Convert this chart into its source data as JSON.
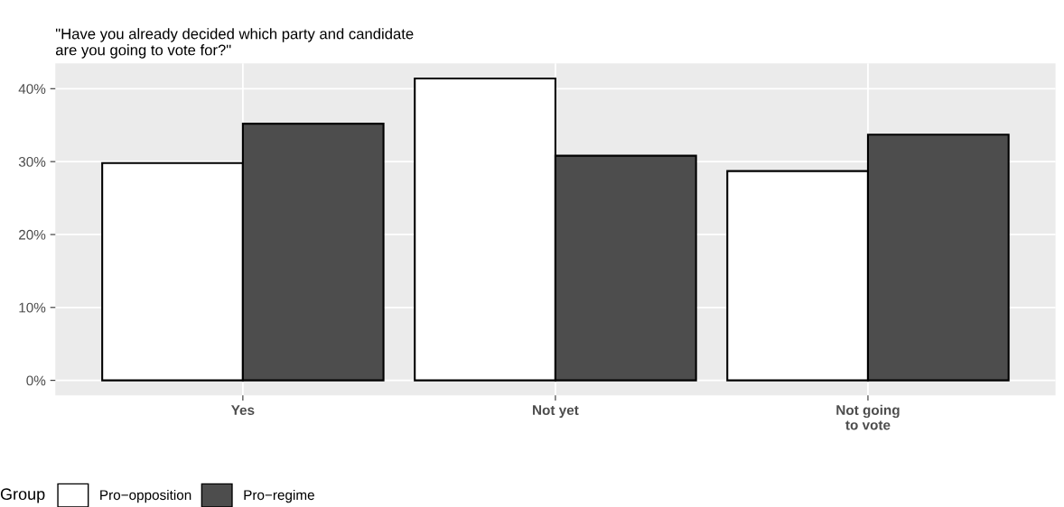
{
  "chart_data": {
    "type": "bar",
    "title": "\"Have you already decided which party and candidate\nare you going to vote for?\"",
    "categories": [
      "Yes",
      "Not yet",
      "Not going\nto vote"
    ],
    "series": [
      {
        "name": "Pro−opposition",
        "color": "#ffffff",
        "values": [
          29.8,
          41.4,
          28.7
        ]
      },
      {
        "name": "Pro−regime",
        "color": "#4d4d4d",
        "values": [
          35.2,
          30.8,
          33.7
        ]
      }
    ],
    "legend_title": "Group",
    "legend": "bottom",
    "grid": true,
    "ylim": [
      -2.07,
      43.47
    ],
    "yticks": [
      {
        "value": 0,
        "label": "0%"
      },
      {
        "value": 10,
        "label": "10%"
      },
      {
        "value": 20,
        "label": "20%"
      },
      {
        "value": 30,
        "label": "30%"
      },
      {
        "value": 40,
        "label": "40%"
      }
    ]
  }
}
